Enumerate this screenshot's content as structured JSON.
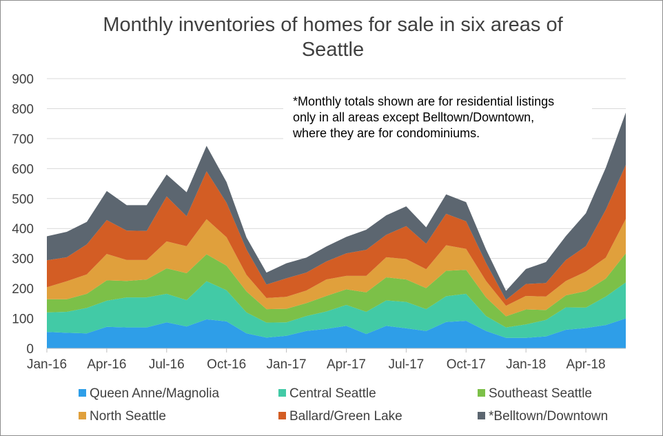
{
  "chart_data": {
    "type": "area",
    "stacked": true,
    "title_lines": [
      "Monthly inventories of homes for sale in six areas of",
      "Seattle"
    ],
    "xlabel": "",
    "ylabel": "",
    "ylim": [
      0,
      900
    ],
    "y_ticks": [
      0,
      100,
      200,
      300,
      400,
      500,
      600,
      700,
      800,
      900
    ],
    "grid": true,
    "x": [
      "Jan-16",
      "Feb-16",
      "Mar-16",
      "Apr-16",
      "May-16",
      "Jun-16",
      "Jul-16",
      "Aug-16",
      "Sep-16",
      "Oct-16",
      "Nov-16",
      "Dec-16",
      "Jan-17",
      "Feb-17",
      "Mar-17",
      "Apr-17",
      "May-17",
      "Jun-17",
      "Jul-17",
      "Aug-17",
      "Sep-17",
      "Oct-17",
      "Nov-17",
      "Dec-17",
      "Jan-18",
      "Feb-18",
      "Mar-18",
      "Apr-18",
      "May-18",
      "Jun-18"
    ],
    "x_tick_labels": [
      {
        "index": 0,
        "label": "Jan-16"
      },
      {
        "index": 3,
        "label": "Apr-16"
      },
      {
        "index": 6,
        "label": "Jul-16"
      },
      {
        "index": 9,
        "label": "Oct-16"
      },
      {
        "index": 12,
        "label": "Jan-17"
      },
      {
        "index": 15,
        "label": "Apr-17"
      },
      {
        "index": 18,
        "label": "Jul-17"
      },
      {
        "index": 21,
        "label": "Oct-17"
      },
      {
        "index": 24,
        "label": "Jan-18"
      },
      {
        "index": 27,
        "label": "Apr-18"
      }
    ],
    "series": [
      {
        "name": "Queen Anne/Magnolia",
        "color": "#2e9ee8",
        "values": [
          55,
          52,
          50,
          72,
          70,
          70,
          87,
          73,
          97,
          90,
          50,
          36,
          42,
          58,
          65,
          75,
          48,
          75,
          67,
          58,
          88,
          92,
          58,
          35,
          35,
          40,
          62,
          68,
          78,
          100
        ]
      },
      {
        "name": "Central Seattle",
        "color": "#42caa6",
        "values": [
          65,
          70,
          85,
          87,
          100,
          100,
          95,
          88,
          127,
          104,
          70,
          50,
          45,
          50,
          58,
          70,
          74,
          85,
          88,
          73,
          86,
          90,
          50,
          35,
          45,
          55,
          75,
          68,
          95,
          120
        ]
      },
      {
        "name": "Southeast Seattle",
        "color": "#7cc048",
        "values": [
          44,
          42,
          47,
          68,
          55,
          60,
          85,
          90,
          90,
          82,
          70,
          45,
          45,
          43,
          52,
          52,
          65,
          77,
          75,
          70,
          85,
          80,
          62,
          37,
          50,
          33,
          40,
          55,
          60,
          97
        ]
      },
      {
        "name": "North Seattle",
        "color": "#e0a03c",
        "values": [
          40,
          60,
          65,
          88,
          70,
          65,
          90,
          90,
          117,
          95,
          55,
          37,
          40,
          42,
          55,
          45,
          55,
          67,
          68,
          63,
          85,
          70,
          55,
          35,
          45,
          45,
          48,
          65,
          70,
          115
        ]
      },
      {
        "name": "Ballard/Green Lake",
        "color": "#d35d24",
        "values": [
          90,
          80,
          100,
          113,
          98,
          97,
          150,
          100,
          160,
          115,
          85,
          45,
          62,
          60,
          60,
          75,
          87,
          75,
          110,
          85,
          105,
          92,
          60,
          20,
          40,
          45,
          70,
          85,
          160,
          180
        ]
      },
      {
        "name": "*Belltown/Downtown",
        "color": "#5c6670",
        "values": [
          80,
          85,
          75,
          97,
          85,
          86,
          73,
          80,
          85,
          69,
          40,
          40,
          50,
          50,
          50,
          55,
          67,
          65,
          66,
          55,
          65,
          64,
          45,
          30,
          50,
          70,
          80,
          110,
          140,
          175
        ]
      }
    ],
    "legend_position": "bottom",
    "annotation": [
      "*Monthly totals shown are for residential listings",
      "only in all areas except Belltown/Downtown,",
      "where they are for condominiums."
    ]
  }
}
